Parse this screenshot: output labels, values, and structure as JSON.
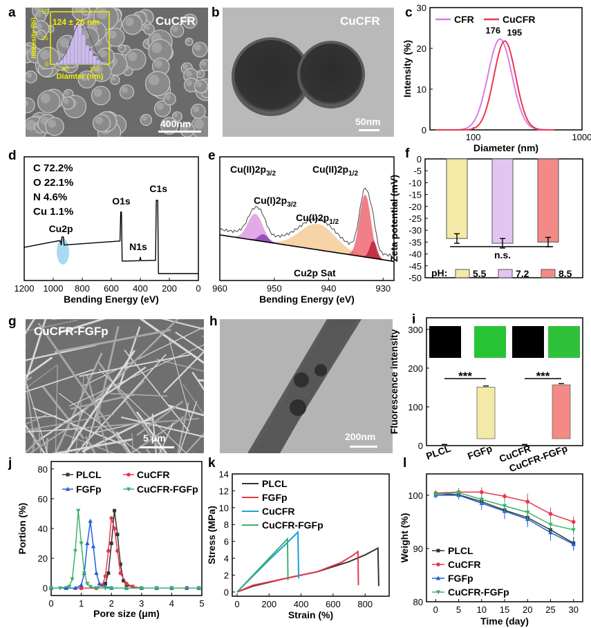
{
  "panel_labels": [
    "a",
    "b",
    "c",
    "d",
    "e",
    "f",
    "g",
    "h",
    "i",
    "j",
    "k",
    "l"
  ],
  "images": {
    "a": {
      "label": "CuCFR",
      "scale": "400nm"
    },
    "b": {
      "label": "CuCFR",
      "scale": "50nm"
    },
    "g": {
      "label": "CuCFR-FGFp",
      "scale": "5 μm"
    },
    "h": {
      "scale": "200nm"
    }
  },
  "colors": {
    "purple": "#d67de8",
    "red": "#e8374a",
    "black": "#333333",
    "blue": "#1f5fd6",
    "green": "#3bb26b",
    "yellow": "#f4e9a6",
    "lavender": "#e4c5f2",
    "salmon": "#f38a86",
    "grey": "#b5b5b5",
    "inset": "#f1f000"
  },
  "chart_data": [
    {
      "panel": "a-inset",
      "type": "bar",
      "xlabel": "Diamter (nm)",
      "ylabel": "Intensity (%)",
      "annotation": "124 ± 26 nm",
      "xticks": [
        "80",
        "160"
      ],
      "yticks": [
        "0",
        "25",
        "50"
      ],
      "xlim": [
        40,
        200
      ],
      "ylim": [
        0,
        50
      ],
      "x": [
        60,
        70,
        80,
        90,
        100,
        110,
        120,
        130,
        140,
        150,
        160,
        170,
        180
      ],
      "values": [
        2,
        5,
        10,
        18,
        27,
        37,
        40,
        28,
        18,
        13,
        8,
        4,
        2
      ]
    },
    {
      "panel": "c",
      "type": "line",
      "xlabel": "Diameter (nm)",
      "ylabel": "Intensity (%)",
      "xscale": "log",
      "xlim": [
        40,
        1000
      ],
      "ylim": [
        0,
        30
      ],
      "xticks": [
        "100",
        "1000"
      ],
      "yticks": [
        "0",
        "10",
        "20",
        "30"
      ],
      "series": [
        {
          "name": "CFR",
          "color": "#d67de8",
          "peak": 176,
          "peak_value": 22.3,
          "sigma": 0.11
        },
        {
          "name": "CuCFR",
          "color": "#e8374a",
          "peak": 195,
          "peak_value": 21.8,
          "sigma": 0.1
        }
      ],
      "annotations": [
        "176",
        "195"
      ]
    },
    {
      "panel": "d",
      "type": "line",
      "xlabel": "Bending Energy (eV)",
      "xlim": [
        1200,
        0
      ],
      "xticks": [
        "1200",
        "1000",
        "800",
        "600",
        "400",
        "200",
        "0"
      ],
      "element_text": [
        "C 72.2%",
        "O 22.1%",
        "N 4.6%",
        "Cu 1.1%"
      ],
      "peak_labels": [
        "Cu2p",
        "O1s",
        "N1s",
        "C1s"
      ],
      "peaks": [
        {
          "label": "Cu2p",
          "x": 933
        },
        {
          "label": "O1s",
          "x": 531
        },
        {
          "label": "N1s",
          "x": 400
        },
        {
          "label": "C1s",
          "x": 285
        }
      ]
    },
    {
      "panel": "e",
      "type": "line",
      "xlabel": "Bending Energy (eV)",
      "xlim": [
        960,
        928
      ],
      "xticks": [
        "960",
        "950",
        "940",
        "930"
      ],
      "peak_labels": [
        {
          "main": "Cu(II)2p",
          "sub": "3/2"
        },
        {
          "main": "Cu(I)2p",
          "sub": "3/2"
        },
        {
          "main": "Cu(II)2p",
          "sub": "1/2"
        },
        {
          "main": "Cu(I)2p",
          "sub": "1/2"
        },
        {
          "main": "Cu2p Sat",
          "sub": ""
        }
      ]
    },
    {
      "panel": "f",
      "type": "bar",
      "ylabel": "Zeta potential (mV)",
      "ylim": [
        -50,
        0
      ],
      "yticks": [
        "0",
        "-5",
        "-10",
        "-15",
        "-20",
        "-25",
        "-30",
        "-35",
        "-40",
        "-45",
        "-50"
      ],
      "categories": [
        "5.5",
        "7.2",
        "8.5"
      ],
      "values": [
        -33.5,
        -35.5,
        -35
      ],
      "errors": [
        2,
        2,
        2
      ],
      "legend_title": "pH:",
      "significance": "n.s."
    },
    {
      "panel": "i",
      "type": "bar",
      "ylabel": "Fluorescence intensity",
      "ylim": [
        0,
        330
      ],
      "yticks": [
        "0",
        "100",
        "200",
        "300"
      ],
      "categories": [
        "PLCL",
        "FGFp",
        "CuCFR",
        "CuCFR-FGFp"
      ],
      "values": [
        2,
        151,
        2,
        157
      ],
      "errors": [
        1,
        3,
        1,
        3
      ],
      "significance": [
        "***",
        "***"
      ]
    },
    {
      "panel": "j",
      "type": "line",
      "xlabel": "Pore size (μm)",
      "ylabel": "Portion (%)",
      "xlim": [
        0,
        5
      ],
      "ylim": [
        -5,
        85
      ],
      "xticks": [
        "0",
        "1",
        "2",
        "3",
        "4",
        "5"
      ],
      "yticks": [
        "0",
        "20",
        "40",
        "60",
        "80"
      ],
      "series": [
        {
          "name": "PLCL",
          "color": "#333333",
          "marker": "square",
          "x": [
            0,
            0.5,
            1.0,
            1.5,
            1.8,
            1.9,
            2.0,
            2.1,
            2.2,
            2.3,
            2.4,
            2.5,
            2.7,
            3.0,
            3.5,
            4.0,
            4.5,
            4.9
          ],
          "y": [
            0,
            0,
            0,
            0,
            3,
            10,
            30,
            52,
            36,
            16,
            5,
            2,
            1,
            0,
            0,
            0,
            0,
            0
          ]
        },
        {
          "name": "CuCFR",
          "color": "#e8374a",
          "marker": "circle",
          "x": [
            0,
            0.5,
            1.0,
            1.5,
            1.7,
            1.8,
            1.9,
            2.0,
            2.1,
            2.2,
            2.3,
            2.5,
            2.7,
            3.0,
            3.5,
            4.0,
            4.5,
            4.9
          ],
          "y": [
            0,
            0,
            0,
            0,
            2,
            8,
            25,
            47,
            40,
            25,
            10,
            3,
            1,
            0,
            0,
            0,
            0,
            0
          ]
        },
        {
          "name": "FGFp",
          "color": "#1f5fd6",
          "marker": "triangle",
          "x": [
            0,
            0.5,
            0.8,
            1.0,
            1.1,
            1.2,
            1.3,
            1.4,
            1.5,
            1.6,
            1.8,
            2.0,
            2.5,
            3.0,
            3.5,
            4.0,
            4.5,
            4.9
          ],
          "y": [
            0,
            0,
            0,
            2,
            10,
            30,
            45,
            28,
            10,
            3,
            1,
            0,
            0,
            0,
            0,
            0,
            0,
            0
          ]
        },
        {
          "name": "CuCFR-FGFp",
          "color": "#3bb26b",
          "marker": "inverted-triangle",
          "x": [
            0,
            0.3,
            0.6,
            0.7,
            0.8,
            0.9,
            1.0,
            1.1,
            1.2,
            1.3,
            1.5,
            1.8,
            2.0,
            2.5,
            3.0,
            3.5,
            4.0,
            4.9
          ],
          "y": [
            0,
            0,
            1,
            6,
            25,
            52,
            30,
            10,
            3,
            1,
            0,
            0,
            0,
            0,
            0,
            0,
            0,
            0
          ]
        }
      ]
    },
    {
      "panel": "k",
      "type": "line",
      "xlabel": "Strain (%)",
      "ylabel": "Stress (MPa)",
      "xlim": [
        -30,
        950
      ],
      "ylim": [
        -0.5,
        14
      ],
      "xticks": [
        "0",
        "200",
        "400",
        "600",
        "800"
      ],
      "yticks": [
        "0",
        "2",
        "4",
        "6",
        "8",
        "10",
        "12",
        "14"
      ],
      "series": [
        {
          "name": "PLCL",
          "color": "#333333",
          "x": [
            0,
            100,
            300,
            500,
            700,
            800,
            880,
            885
          ],
          "y": [
            0,
            0.7,
            1.6,
            2.4,
            3.6,
            4.4,
            5.2,
            0.7
          ]
        },
        {
          "name": "FGFp",
          "color": "#e8374a",
          "x": [
            0,
            100,
            300,
            500,
            650,
            720,
            755,
            758
          ],
          "y": [
            0,
            0.8,
            1.6,
            2.4,
            3.5,
            4.3,
            4.8,
            0.8
          ]
        },
        {
          "name": "CuCFR",
          "color": "#1a9fd9",
          "x": [
            0,
            100,
            200,
            300,
            380,
            385
          ],
          "y": [
            0,
            1.9,
            3.8,
            5.6,
            7.1,
            1.6
          ]
        },
        {
          "name": "CuCFR-FGFp",
          "color": "#3bb26b",
          "x": [
            0,
            100,
            200,
            300,
            315,
            318
          ],
          "y": [
            0,
            2.0,
            4.0,
            6.0,
            6.3,
            1.4
          ]
        }
      ]
    },
    {
      "panel": "l",
      "type": "line",
      "xlabel": "Time (day)",
      "ylabel": "Weight (%)",
      "xlim": [
        -2,
        32
      ],
      "ylim": [
        80,
        104
      ],
      "xticks": [
        "0",
        "5",
        "10",
        "15",
        "20",
        "25",
        "30"
      ],
      "yticks": [
        "80",
        "90",
        "100"
      ],
      "series": [
        {
          "name": "PLCL",
          "color": "#333333",
          "x": [
            0,
            5,
            10,
            15,
            20,
            25,
            30
          ],
          "y": [
            100.3,
            100.1,
            98.8,
            97.2,
            95.8,
            93.5,
            91.0
          ],
          "err": [
            0.6,
            0.8,
            0.8,
            1,
            1.2,
            1.3,
            1.2
          ]
        },
        {
          "name": "CuCFR",
          "color": "#e8374a",
          "x": [
            0,
            5,
            10,
            15,
            20,
            25,
            30
          ],
          "y": [
            100.4,
            100.6,
            100.6,
            99.8,
            98.8,
            96.5,
            95.0
          ],
          "err": [
            0.5,
            0.7,
            0.9,
            0.6,
            1.5,
            1.2,
            1.0
          ]
        },
        {
          "name": "FGFp",
          "color": "#1f5fd6",
          "x": [
            0,
            5,
            10,
            15,
            20,
            25,
            30
          ],
          "y": [
            100.0,
            100.0,
            98.5,
            97.0,
            95.5,
            93.0,
            90.8
          ],
          "err": [
            0.6,
            0.8,
            1.2,
            1.5,
            1.5,
            1.5,
            1.2
          ]
        },
        {
          "name": "CuCFR-FGFp",
          "color": "#3bb26b",
          "x": [
            0,
            5,
            10,
            15,
            20,
            25,
            30
          ],
          "y": [
            100.2,
            100.5,
            99.2,
            98.0,
            96.8,
            94.5,
            93.5
          ],
          "err": [
            0.6,
            0.9,
            1.0,
            1.2,
            1.5,
            1.3,
            1.0
          ]
        }
      ]
    }
  ]
}
